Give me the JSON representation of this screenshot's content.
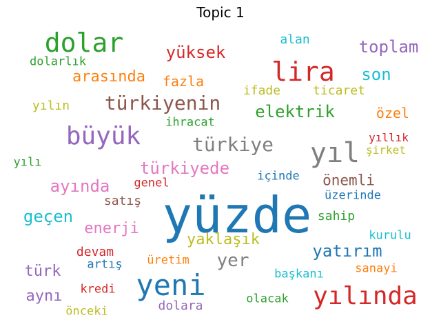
{
  "chart_data": {
    "type": "wordcloud",
    "title": "Topic 1",
    "words": [
      {
        "text": "yüzde",
        "weight": 1.0,
        "color": "#1f77b4"
      },
      {
        "text": "yeni",
        "weight": 0.55,
        "color": "#1f77b4"
      },
      {
        "text": "yıl",
        "weight": 0.5,
        "color": "#7f7f7f"
      },
      {
        "text": "lira",
        "weight": 0.48,
        "color": "#d62728"
      },
      {
        "text": "dolar",
        "weight": 0.46,
        "color": "#2ca02c"
      },
      {
        "text": "yılında",
        "weight": 0.44,
        "color": "#d62728"
      },
      {
        "text": "büyük",
        "weight": 0.43,
        "color": "#9467bd"
      },
      {
        "text": "türkiyenin",
        "weight": 0.36,
        "color": "#8c564b"
      },
      {
        "text": "türkiye",
        "weight": 0.36,
        "color": "#7f7f7f"
      },
      {
        "text": "yer",
        "weight": 0.33,
        "color": "#7f7f7f"
      },
      {
        "text": "toplam",
        "weight": 0.3,
        "color": "#9467bd"
      },
      {
        "text": "son",
        "weight": 0.3,
        "color": "#17becf"
      },
      {
        "text": "yüksek",
        "weight": 0.3,
        "color": "#d62728"
      },
      {
        "text": "elektrik",
        "weight": 0.3,
        "color": "#2ca02c"
      },
      {
        "text": "türkiyede",
        "weight": 0.3,
        "color": "#e377c2"
      },
      {
        "text": "ayında",
        "weight": 0.3,
        "color": "#e377c2"
      },
      {
        "text": "geçen",
        "weight": 0.3,
        "color": "#17becf"
      },
      {
        "text": "yatırım",
        "weight": 0.3,
        "color": "#1f77b4"
      },
      {
        "text": "arasında",
        "weight": 0.28,
        "color": "#ff7f0e"
      },
      {
        "text": "yaklaşık",
        "weight": 0.28,
        "color": "#bcbd22"
      },
      {
        "text": "aynı",
        "weight": 0.28,
        "color": "#9467bd"
      },
      {
        "text": "türk",
        "weight": 0.28,
        "color": "#9467bd"
      },
      {
        "text": "enerji",
        "weight": 0.27,
        "color": "#e377c2"
      },
      {
        "text": "önemli",
        "weight": 0.26,
        "color": "#8c564b"
      },
      {
        "text": "fazla",
        "weight": 0.25,
        "color": "#ff7f0e"
      },
      {
        "text": "özel",
        "weight": 0.25,
        "color": "#ff7f0e"
      },
      {
        "text": "ifade",
        "weight": 0.22,
        "color": "#bcbd22"
      },
      {
        "text": "ticaret",
        "weight": 0.22,
        "color": "#bcbd22"
      },
      {
        "text": "yılın",
        "weight": 0.22,
        "color": "#bcbd22"
      },
      {
        "text": "alan",
        "weight": 0.22,
        "color": "#17becf"
      },
      {
        "text": "satış",
        "weight": 0.22,
        "color": "#8c564b"
      },
      {
        "text": "sahip",
        "weight": 0.22,
        "color": "#2ca02c"
      },
      {
        "text": "devam",
        "weight": 0.22,
        "color": "#d62728"
      },
      {
        "text": "dolara",
        "weight": 0.22,
        "color": "#9467bd"
      },
      {
        "text": "olacak",
        "weight": 0.21,
        "color": "#2ca02c"
      },
      {
        "text": "dolarlık",
        "weight": 0.2,
        "color": "#2ca02c"
      },
      {
        "text": "ihracat",
        "weight": 0.2,
        "color": "#2ca02c"
      },
      {
        "text": "yıllık",
        "weight": 0.2,
        "color": "#d62728"
      },
      {
        "text": "şirket",
        "weight": 0.2,
        "color": "#bcbd22"
      },
      {
        "text": "yılı",
        "weight": 0.2,
        "color": "#2ca02c"
      },
      {
        "text": "genel",
        "weight": 0.2,
        "color": "#d62728"
      },
      {
        "text": "içinde",
        "weight": 0.2,
        "color": "#1f77b4"
      },
      {
        "text": "üzerinde",
        "weight": 0.2,
        "color": "#1f77b4"
      },
      {
        "text": "kurulu",
        "weight": 0.2,
        "color": "#17becf"
      },
      {
        "text": "artış",
        "weight": 0.2,
        "color": "#1f77b4"
      },
      {
        "text": "üretim",
        "weight": 0.2,
        "color": "#ff7f0e"
      },
      {
        "text": "sanayi",
        "weight": 0.2,
        "color": "#ff7f0e"
      },
      {
        "text": "başkanı",
        "weight": 0.2,
        "color": "#17becf"
      },
      {
        "text": "kredi",
        "weight": 0.2,
        "color": "#d62728"
      },
      {
        "text": "önceki",
        "weight": 0.2,
        "color": "#bcbd22"
      }
    ]
  }
}
